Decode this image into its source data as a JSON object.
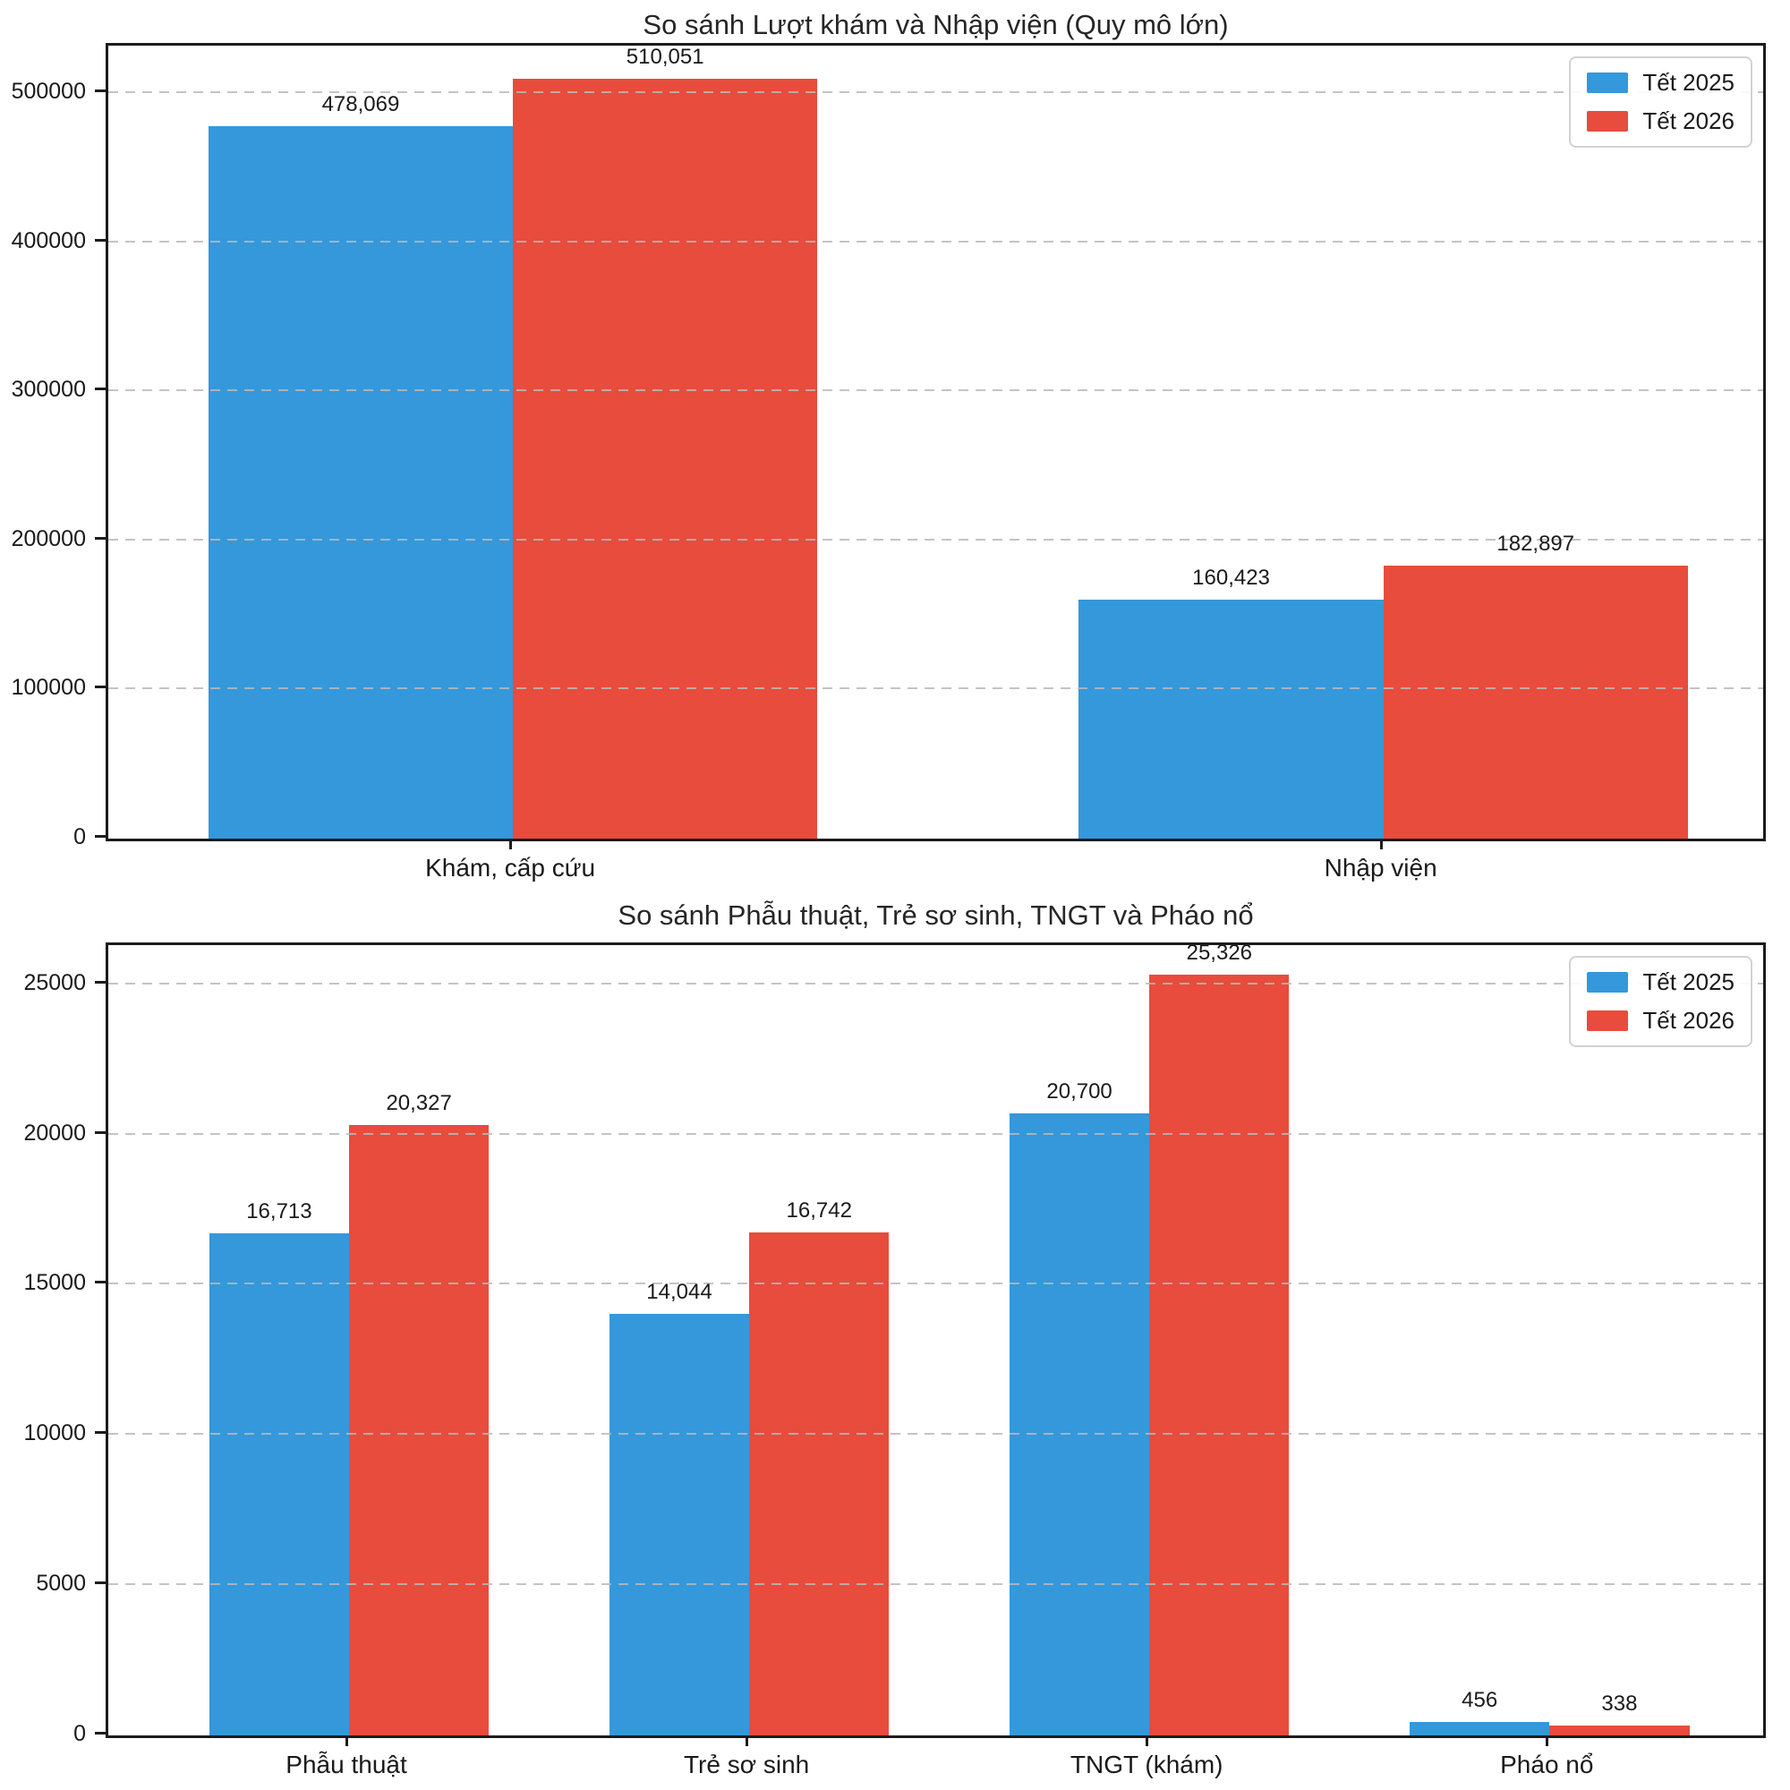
{
  "figure": {
    "background": "#ffffff",
    "text_color": "#1a1a1a",
    "grid_color": "#b9b9b9",
    "spine_color": "#1c1c1c"
  },
  "legend": {
    "entries": [
      {
        "label": "Tết 2025",
        "color": "#3498db"
      },
      {
        "label": "Tết 2026",
        "color": "#e74c3c"
      }
    ],
    "position": "top-right"
  },
  "chart_data": [
    {
      "type": "bar",
      "title": "So sánh Lượt khám và Nhập viện (Quy mô lớn)",
      "categories": [
        "Khám, cấp cứu",
        "Nhập viện"
      ],
      "series": [
        {
          "name": "Tết 2025",
          "color": "#3498db",
          "values": [
            478069,
            160423
          ],
          "labels": [
            "478,069",
            "160,423"
          ]
        },
        {
          "name": "Tết 2026",
          "color": "#e74c3c",
          "values": [
            510051,
            182897
          ],
          "labels": [
            "510,051",
            "182,897"
          ]
        }
      ],
      "xlabel": "",
      "ylabel": "",
      "yticks": [
        0,
        100000,
        200000,
        300000,
        400000,
        500000
      ],
      "ylim": [
        0,
        532000
      ],
      "grid": "horizontal-dashed",
      "legend_position": "top-right",
      "layout": {
        "centers_pct": [
          24.45,
          77.05
        ],
        "bar_width_pct": 18.4
      }
    },
    {
      "type": "bar",
      "title": "So sánh Phẫu thuật, Trẻ sơ sinh, TNGT và Pháo nổ",
      "categories": [
        "Phẫu thuật",
        "Trẻ sơ sinh",
        "TNGT (khám)",
        "Pháo nổ"
      ],
      "series": [
        {
          "name": "Tết 2025",
          "color": "#3498db",
          "values": [
            16713,
            14044,
            20700,
            456
          ],
          "labels": [
            "16,713",
            "14,044",
            "20,700",
            "456"
          ]
        },
        {
          "name": "Tết 2026",
          "color": "#e74c3c",
          "values": [
            20327,
            16742,
            25326,
            338
          ],
          "labels": [
            "20,327",
            "16,742",
            "25,326",
            "338"
          ]
        }
      ],
      "xlabel": "",
      "ylabel": "",
      "yticks": [
        0,
        5000,
        10000,
        15000,
        20000,
        25000
      ],
      "ylim": [
        0,
        26300
      ],
      "grid": "horizontal-dashed",
      "legend_position": "top-right",
      "layout": {
        "centers_pct": [
          14.55,
          38.73,
          62.91,
          87.09
        ],
        "bar_width_pct": 8.45
      }
    }
  ]
}
